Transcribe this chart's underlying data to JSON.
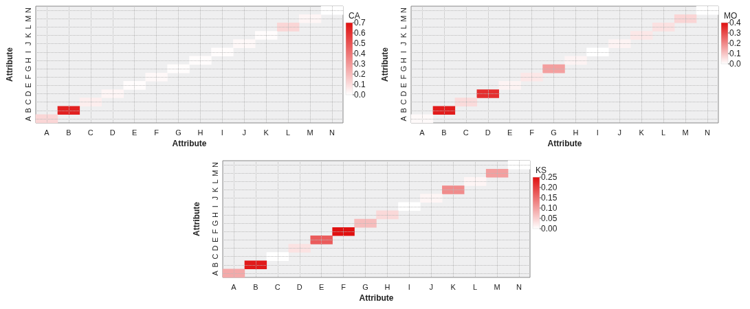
{
  "chart_data": [
    {
      "type": "heatmap",
      "xlabel": "Attribute",
      "ylabel": "Attribute",
      "clabel": "CA",
      "grid": true,
      "categories": [
        "A",
        "B",
        "C",
        "D",
        "E",
        "F",
        "G",
        "H",
        "I",
        "J",
        "K",
        "L",
        "M",
        "N"
      ],
      "y_categories": [
        "N",
        "M",
        "L",
        "K",
        "J",
        "I",
        "H",
        "G",
        "F",
        "E",
        "D",
        "C",
        "B",
        "A"
      ],
      "cells": [
        [
          null,
          null,
          null,
          null,
          null,
          null,
          null,
          null,
          null,
          null,
          null,
          null,
          null,
          0.0
        ],
        [
          null,
          null,
          null,
          null,
          null,
          null,
          null,
          null,
          null,
          null,
          null,
          null,
          0.03,
          null
        ],
        [
          null,
          null,
          null,
          null,
          null,
          null,
          null,
          null,
          null,
          null,
          null,
          0.12,
          null,
          null
        ],
        [
          null,
          null,
          null,
          null,
          null,
          null,
          null,
          null,
          null,
          null,
          0.01,
          null,
          null,
          null
        ],
        [
          null,
          null,
          null,
          null,
          null,
          null,
          null,
          null,
          null,
          0.02,
          null,
          null,
          null,
          null
        ],
        [
          null,
          null,
          null,
          null,
          null,
          null,
          null,
          null,
          0.01,
          null,
          null,
          null,
          null,
          null
        ],
        [
          null,
          null,
          null,
          null,
          null,
          null,
          null,
          0.01,
          null,
          null,
          null,
          null,
          null,
          null
        ],
        [
          null,
          null,
          null,
          null,
          null,
          null,
          0.01,
          null,
          null,
          null,
          null,
          null,
          null,
          null
        ],
        [
          null,
          null,
          null,
          null,
          null,
          0.02,
          null,
          null,
          null,
          null,
          null,
          null,
          null,
          null
        ],
        [
          null,
          null,
          null,
          null,
          0.01,
          null,
          null,
          null,
          null,
          null,
          null,
          null,
          null,
          null
        ],
        [
          null,
          null,
          null,
          0.03,
          null,
          null,
          null,
          null,
          null,
          null,
          null,
          null,
          null,
          null
        ],
        [
          null,
          null,
          0.05,
          null,
          null,
          null,
          null,
          null,
          null,
          null,
          null,
          null,
          null,
          null
        ],
        [
          null,
          0.65,
          null,
          null,
          null,
          null,
          null,
          null,
          null,
          null,
          null,
          null,
          null,
          null
        ],
        [
          0.12,
          null,
          null,
          null,
          null,
          null,
          null,
          null,
          null,
          null,
          null,
          null,
          null,
          null
        ]
      ],
      "clim": [
        0,
        0.7
      ],
      "cticks": [
        {
          "value": 0,
          "label": "0.0"
        },
        0.1,
        0.2,
        0.3,
        0.4,
        0.5,
        0.6,
        0.7
      ]
    },
    {
      "type": "heatmap",
      "xlabel": "Attribute",
      "ylabel": "Attribute",
      "clabel": "MO",
      "grid": true,
      "categories": [
        "A",
        "B",
        "C",
        "D",
        "E",
        "F",
        "G",
        "H",
        "I",
        "J",
        "K",
        "L",
        "M",
        "N"
      ],
      "y_categories": [
        "N",
        "M",
        "L",
        "K",
        "J",
        "I",
        "H",
        "G",
        "F",
        "E",
        "D",
        "C",
        "B",
        "A"
      ],
      "cells": [
        [
          null,
          null,
          null,
          null,
          null,
          null,
          null,
          null,
          null,
          null,
          null,
          null,
          null,
          0.0
        ],
        [
          null,
          null,
          null,
          null,
          null,
          null,
          null,
          null,
          null,
          null,
          null,
          null,
          0.07,
          null
        ],
        [
          null,
          null,
          null,
          null,
          null,
          null,
          null,
          null,
          null,
          null,
          null,
          0.05,
          null,
          null
        ],
        [
          null,
          null,
          null,
          null,
          null,
          null,
          null,
          null,
          null,
          null,
          0.04,
          null,
          null,
          null
        ],
        [
          null,
          null,
          null,
          null,
          null,
          null,
          null,
          null,
          null,
          0.02,
          null,
          null,
          null,
          null
        ],
        [
          null,
          null,
          null,
          null,
          null,
          null,
          null,
          null,
          0.0,
          null,
          null,
          null,
          null,
          null
        ],
        [
          null,
          null,
          null,
          null,
          null,
          null,
          null,
          0.02,
          null,
          null,
          null,
          null,
          null,
          null
        ],
        [
          null,
          null,
          null,
          null,
          null,
          null,
          0.16,
          null,
          null,
          null,
          null,
          null,
          null,
          null
        ],
        [
          null,
          null,
          null,
          null,
          null,
          0.04,
          null,
          null,
          null,
          null,
          null,
          null,
          null,
          null
        ],
        [
          null,
          null,
          null,
          null,
          0.02,
          null,
          null,
          null,
          null,
          null,
          null,
          null,
          null,
          null
        ],
        [
          null,
          null,
          null,
          0.35,
          null,
          null,
          null,
          null,
          null,
          null,
          null,
          null,
          null,
          null
        ],
        [
          null,
          null,
          0.06,
          null,
          null,
          null,
          null,
          null,
          null,
          null,
          null,
          null,
          null,
          null
        ],
        [
          null,
          0.38,
          null,
          null,
          null,
          null,
          null,
          null,
          null,
          null,
          null,
          null,
          null,
          null
        ],
        [
          0.01,
          null,
          null,
          null,
          null,
          null,
          null,
          null,
          null,
          null,
          null,
          null,
          null,
          null
        ]
      ],
      "clim": [
        0,
        0.4
      ],
      "cticks": [
        {
          "value": 0,
          "label": "0.0"
        },
        0.1,
        0.2,
        0.3,
        0.4
      ]
    },
    {
      "type": "heatmap",
      "xlabel": "Attribute",
      "ylabel": "Attribute",
      "clabel": "KS",
      "grid": true,
      "categories": [
        "A",
        "B",
        "C",
        "D",
        "E",
        "F",
        "G",
        "H",
        "I",
        "J",
        "K",
        "L",
        "M",
        "N"
      ],
      "y_categories": [
        "N",
        "M",
        "L",
        "K",
        "J",
        "I",
        "H",
        "G",
        "F",
        "E",
        "D",
        "C",
        "B",
        "A"
      ],
      "cells": [
        [
          null,
          null,
          null,
          null,
          null,
          null,
          null,
          null,
          null,
          null,
          null,
          null,
          null,
          0.0
        ],
        [
          null,
          null,
          null,
          null,
          null,
          null,
          null,
          null,
          null,
          null,
          null,
          null,
          0.1,
          null
        ],
        [
          null,
          null,
          null,
          null,
          null,
          null,
          null,
          null,
          null,
          null,
          null,
          0.01,
          null,
          null
        ],
        [
          null,
          null,
          null,
          null,
          null,
          null,
          null,
          null,
          null,
          null,
          0.12,
          null,
          null,
          null
        ],
        [
          null,
          null,
          null,
          null,
          null,
          null,
          null,
          null,
          null,
          0.01,
          null,
          null,
          null,
          null
        ],
        [
          null,
          null,
          null,
          null,
          null,
          null,
          null,
          null,
          0.0,
          null,
          null,
          null,
          null,
          null
        ],
        [
          null,
          null,
          null,
          null,
          null,
          null,
          null,
          0.04,
          null,
          null,
          null,
          null,
          null,
          null
        ],
        [
          null,
          null,
          null,
          null,
          null,
          null,
          0.07,
          null,
          null,
          null,
          null,
          null,
          null,
          null
        ],
        [
          null,
          null,
          null,
          null,
          null,
          0.25,
          null,
          null,
          null,
          null,
          null,
          null,
          null,
          null
        ],
        [
          null,
          null,
          null,
          null,
          0.17,
          null,
          null,
          null,
          null,
          null,
          null,
          null,
          null,
          null
        ],
        [
          null,
          null,
          null,
          0.03,
          null,
          null,
          null,
          null,
          null,
          null,
          null,
          null,
          null,
          null
        ],
        [
          null,
          null,
          0.0,
          null,
          null,
          null,
          null,
          null,
          null,
          null,
          null,
          null,
          null,
          null
        ],
        [
          null,
          0.24,
          null,
          null,
          null,
          null,
          null,
          null,
          null,
          null,
          null,
          null,
          null,
          null
        ],
        [
          0.09,
          null,
          null,
          null,
          null,
          null,
          null,
          null,
          null,
          null,
          null,
          null,
          null,
          null
        ]
      ],
      "clim": [
        0,
        0.25
      ],
      "cticks": [
        {
          "value": 0,
          "label": "0.00"
        },
        {
          "value": 0.05,
          "label": "0.05"
        },
        {
          "value": 0.1,
          "label": "0.10"
        },
        {
          "value": 0.15,
          "label": "0.15"
        },
        {
          "value": 0.2,
          "label": "0.20"
        },
        {
          "value": 0.25,
          "label": "0.25"
        }
      ]
    }
  ]
}
